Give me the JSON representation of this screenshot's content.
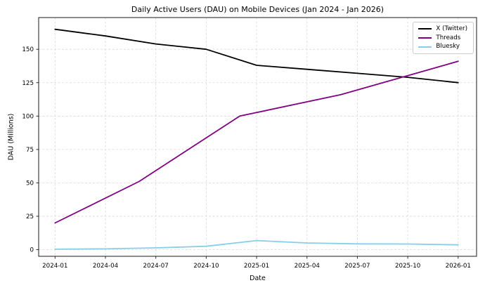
{
  "chart_data": {
    "type": "line",
    "title": "Daily Active Users (DAU) on Mobile Devices (Jan 2024 - Jan 2026)",
    "xlabel": "Date",
    "ylabel": "DAU (Millions)",
    "x_tick_labels": [
      "2024-01",
      "2024-04",
      "2024-07",
      "2024-10",
      "2025-01",
      "2025-04",
      "2025-07",
      "2025-10",
      "2026-01"
    ],
    "y_tick_values": [
      0,
      25,
      50,
      75,
      100,
      125,
      150
    ],
    "ylim": [
      -5,
      174
    ],
    "x_range": [
      "2024-01",
      "2026-01"
    ],
    "grid": "both, dashed, light-gray",
    "grid_color": "#d9d9d9",
    "spine_color": "#1a1a1a",
    "background_color": "#ffffff",
    "legend_position": "upper right",
    "series": [
      {
        "name": "X (Twitter)",
        "color": "#000000",
        "points": [
          [
            "2024-01",
            165
          ],
          [
            "2024-04",
            160
          ],
          [
            "2024-07",
            154
          ],
          [
            "2024-10",
            150
          ],
          [
            "2025-01",
            138
          ],
          [
            "2025-04",
            135
          ],
          [
            "2025-07",
            132
          ],
          [
            "2025-10",
            129
          ],
          [
            "2026-01",
            125
          ]
        ]
      },
      {
        "name": "Threads",
        "color": "#800080",
        "points": [
          [
            "2024-01",
            20
          ],
          [
            "2024-06",
            51
          ],
          [
            "2024-12",
            100
          ],
          [
            "2025-06",
            116
          ],
          [
            "2026-01",
            141
          ]
        ]
      },
      {
        "name": "Bluesky",
        "color": "#87CEEB",
        "points": [
          [
            "2024-01",
            0.3
          ],
          [
            "2024-04",
            0.6
          ],
          [
            "2024-07",
            1.3
          ],
          [
            "2024-10",
            2.5
          ],
          [
            "2025-01",
            6.8
          ],
          [
            "2025-04",
            5.0
          ],
          [
            "2025-07",
            4.3
          ],
          [
            "2025-10",
            4.2
          ],
          [
            "2026-01",
            3.6
          ]
        ]
      }
    ]
  }
}
